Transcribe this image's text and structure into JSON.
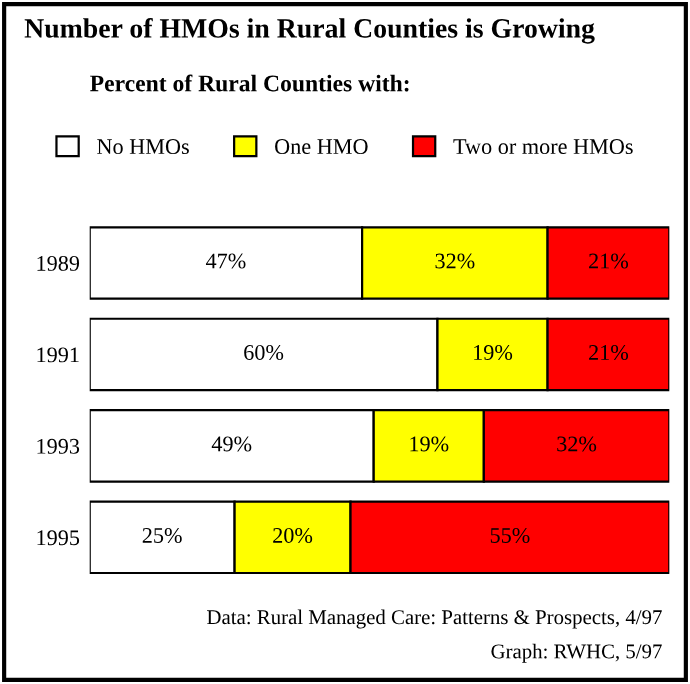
{
  "chart_data": {
    "type": "bar",
    "orientation": "horizontal",
    "stacked": true,
    "title": "Number of HMOs in Rural Counties is Growing",
    "subtitle": "Percent of Rural Counties with:",
    "categories": [
      "1989",
      "1991",
      "1993",
      "1995"
    ],
    "series": [
      {
        "name": "No HMOs",
        "color": "#ffffff",
        "values": [
          47,
          60,
          49,
          25
        ],
        "value_labels": [
          "47%",
          "60%",
          "49%",
          "25%"
        ]
      },
      {
        "name": "One HMO",
        "color": "#ffff00",
        "values": [
          32,
          19,
          19,
          20
        ],
        "value_labels": [
          "32%",
          "19%",
          "19%",
          "20%"
        ]
      },
      {
        "name": "Two or more HMOs",
        "color": "#ff0000",
        "values": [
          21,
          21,
          32,
          55
        ],
        "value_labels": [
          "21%",
          "21%",
          "32%",
          "55%"
        ]
      }
    ],
    "legend": "top",
    "tick_labels": "y",
    "grid": false,
    "annotations": [
      "Data: Rural Managed Care: Patterns & Prospects, 4/97",
      "Graph: RWHC, 5/97"
    ]
  }
}
